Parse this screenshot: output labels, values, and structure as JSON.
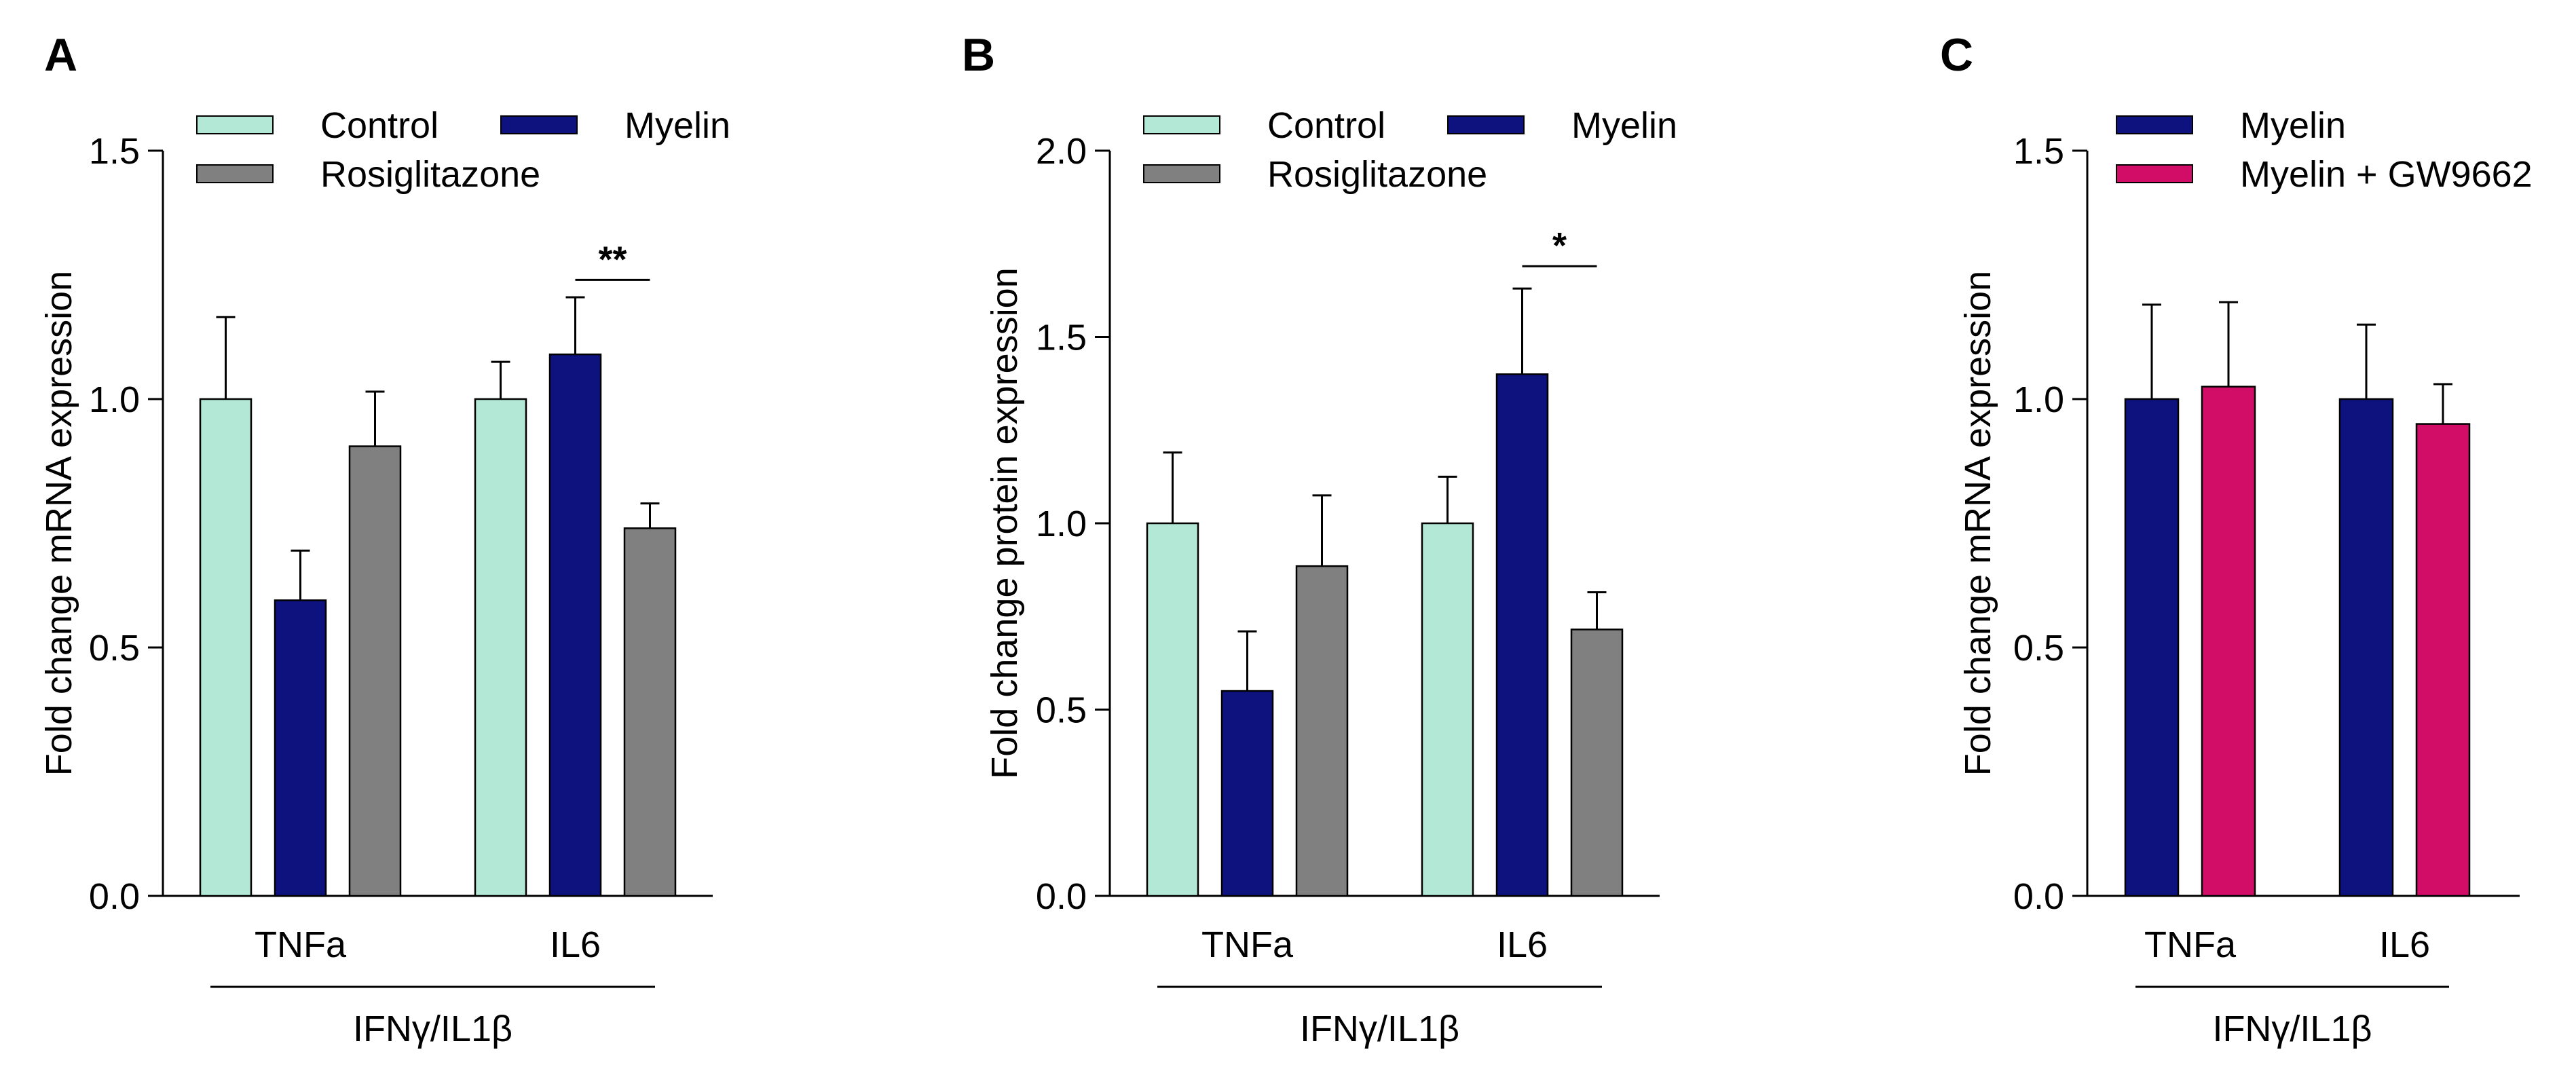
{
  "colors": {
    "Control": "#b3e8d6",
    "Myelin": "#0d127f",
    "Rosiglitazone": "#808080",
    "Myelin + GW9662": "#d10d67"
  },
  "chart_data": [
    {
      "panel": "A",
      "type": "bar",
      "ylabel": "Fold change mRNA expression",
      "ylim": [
        0,
        1.5
      ],
      "yticks": [
        "0.0",
        "0.5",
        "1.0",
        "1.5"
      ],
      "ytick_values": [
        0,
        0.5,
        1.0,
        1.5
      ],
      "categories": [
        "TNFa",
        "IL6"
      ],
      "group_label": "IFNγ/IL1β",
      "legend": [
        "Control",
        "Myelin",
        "Rosiglitazone"
      ],
      "series": [
        {
          "name": "Control",
          "values": [
            1.0,
            1.0
          ],
          "errors": [
            0.165,
            0.075
          ]
        },
        {
          "name": "Myelin",
          "values": [
            0.595,
            1.09
          ],
          "errors": [
            0.1,
            0.115
          ]
        },
        {
          "name": "Rosiglitazone",
          "values": [
            0.905,
            0.74
          ],
          "errors": [
            0.11,
            0.05
          ]
        }
      ],
      "significance": [
        {
          "category": "IL6",
          "from": "Myelin",
          "to": "Rosiglitazone",
          "label": "**",
          "level": 1.24
        }
      ]
    },
    {
      "panel": "B",
      "type": "bar",
      "ylabel": "Fold change protein expression",
      "ylim": [
        0,
        2.0
      ],
      "yticks": [
        "0.0",
        "0.5",
        "1.0",
        "1.5",
        "2.0"
      ],
      "ytick_values": [
        0,
        0.5,
        1.0,
        1.5,
        2.0
      ],
      "categories": [
        "TNFa",
        "IL6"
      ],
      "group_label": "IFNγ/IL1β",
      "legend": [
        "Control",
        "Myelin",
        "Rosiglitazone"
      ],
      "series": [
        {
          "name": "Control",
          "values": [
            1.0,
            1.0
          ],
          "errors": [
            0.19,
            0.125
          ]
        },
        {
          "name": "Myelin",
          "values": [
            0.55,
            1.4
          ],
          "errors": [
            0.16,
            0.23
          ]
        },
        {
          "name": "Rosiglitazone",
          "values": [
            0.885,
            0.715
          ],
          "errors": [
            0.19,
            0.1
          ]
        }
      ],
      "significance": [
        {
          "category": "IL6",
          "from": "Myelin",
          "to": "Rosiglitazone",
          "label": "*",
          "level": 1.69
        }
      ]
    },
    {
      "panel": "C",
      "type": "bar",
      "ylabel": "Fold change mRNA expression",
      "ylim": [
        0,
        1.5
      ],
      "yticks": [
        "0.0",
        "0.5",
        "1.0",
        "1.5"
      ],
      "ytick_values": [
        0,
        0.5,
        1.0,
        1.5
      ],
      "categories": [
        "TNFa",
        "IL6"
      ],
      "group_label": "IFNγ/IL1β",
      "legend": [
        "Myelin",
        "Myelin + GW9662"
      ],
      "series": [
        {
          "name": "Myelin",
          "values": [
            1.0,
            1.0
          ],
          "errors": [
            0.19,
            0.15
          ]
        },
        {
          "name": "Myelin + GW9662",
          "values": [
            1.025,
            0.95
          ],
          "errors": [
            0.17,
            0.08
          ]
        }
      ],
      "significance": []
    }
  ]
}
